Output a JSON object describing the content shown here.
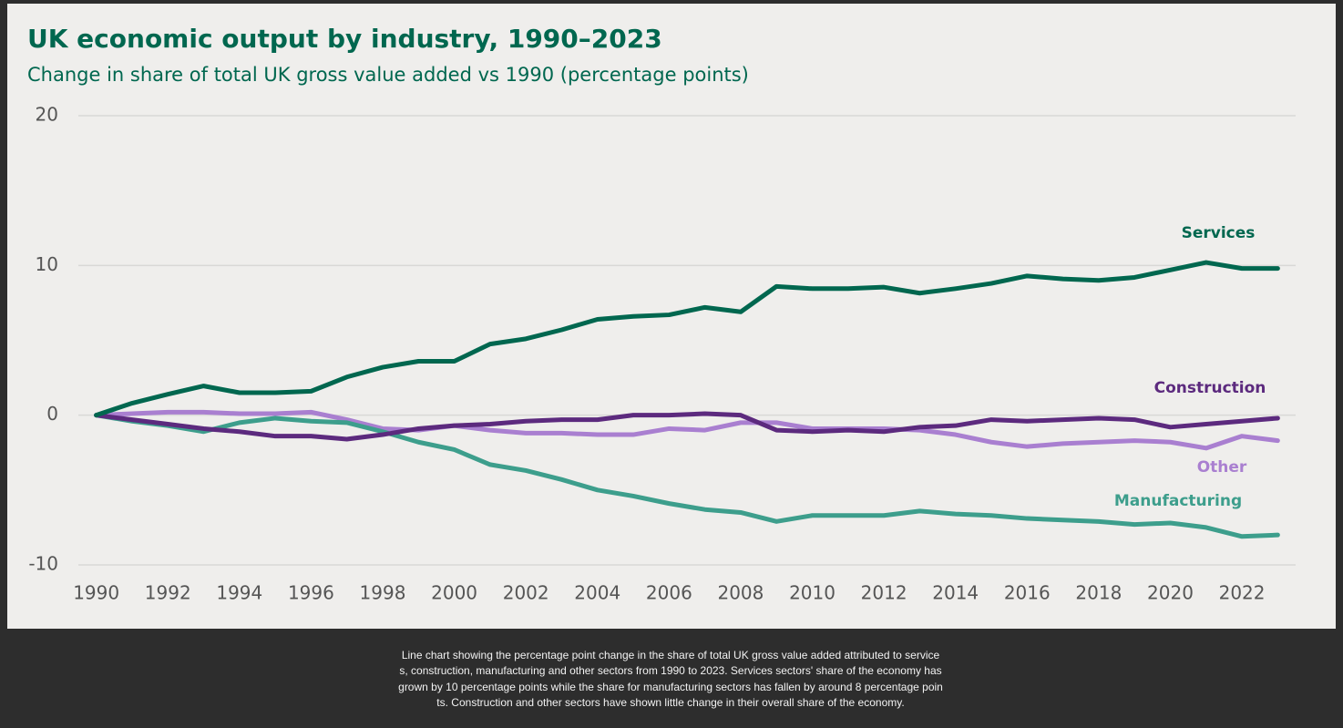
{
  "chart_data": {
    "type": "line",
    "title": "UK economic output by industry, 1990–2023",
    "subtitle": "Change in share of total UK gross value added vs 1990 (percentage points)",
    "x": [
      1990,
      1991,
      1992,
      1993,
      1994,
      1995,
      1996,
      1997,
      1998,
      1999,
      2000,
      2001,
      2002,
      2003,
      2004,
      2005,
      2006,
      2007,
      2008,
      2009,
      2010,
      2011,
      2012,
      2013,
      2014,
      2015,
      2016,
      2017,
      2018,
      2019,
      2020,
      2021,
      2022,
      2023
    ],
    "series": [
      {
        "name": "Services",
        "color": "#00674f",
        "values": [
          0,
          0.8,
          1.4,
          1.95,
          1.5,
          1.5,
          1.6,
          2.55,
          3.2,
          3.6,
          3.6,
          4.75,
          5.1,
          5.7,
          6.4,
          6.6,
          6.7,
          7.2,
          6.9,
          8.6,
          8.45,
          8.45,
          8.55,
          8.15,
          8.45,
          8.8,
          9.3,
          9.1,
          9.0,
          9.2,
          9.7,
          10.2,
          9.8,
          9.8
        ]
      },
      {
        "name": "Construction",
        "color": "#5c2a7e",
        "values": [
          0,
          -0.3,
          -0.6,
          -0.9,
          -1.1,
          -1.4,
          -1.4,
          -1.6,
          -1.3,
          -0.9,
          -0.7,
          -0.6,
          -0.4,
          -0.3,
          -0.3,
          0,
          0,
          0.1,
          0,
          -1.0,
          -1.1,
          -1.0,
          -1.1,
          -0.8,
          -0.7,
          -0.3,
          -0.4,
          -0.3,
          -0.2,
          -0.3,
          -0.8,
          -0.6,
          -0.4,
          -0.2
        ]
      },
      {
        "name": "Other",
        "color": "#a97fd0",
        "values": [
          0,
          0.1,
          0.2,
          0.2,
          0.1,
          0.1,
          0.2,
          -0.3,
          -0.9,
          -1.0,
          -0.7,
          -1.0,
          -1.2,
          -1.2,
          -1.3,
          -1.3,
          -0.9,
          -1.0,
          -0.5,
          -0.5,
          -0.9,
          -0.9,
          -0.9,
          -1.0,
          -1.3,
          -1.8,
          -2.1,
          -1.9,
          -1.8,
          -1.7,
          -1.8,
          -2.2,
          -1.4,
          -1.7
        ]
      },
      {
        "name": "Manufacturing",
        "color": "#3d9e8c",
        "values": [
          0,
          -0.4,
          -0.7,
          -1.1,
          -0.5,
          -0.2,
          -0.4,
          -0.5,
          -1.1,
          -1.8,
          -2.3,
          -3.3,
          -3.7,
          -4.3,
          -5.0,
          -5.4,
          -5.9,
          -6.3,
          -6.5,
          -7.1,
          -6.7,
          -6.7,
          -6.7,
          -6.4,
          -6.6,
          -6.7,
          -6.9,
          -7.0,
          -7.1,
          -7.3,
          -7.2,
          -7.5,
          -8.1,
          -8.0
        ]
      }
    ],
    "xlim": [
      1989.5,
      2023.5
    ],
    "xticks": [
      1990,
      1992,
      1994,
      1996,
      1998,
      2000,
      2002,
      2004,
      2006,
      2008,
      2010,
      2012,
      2014,
      2016,
      2018,
      2020,
      2022
    ],
    "ylim": [
      -10,
      20
    ],
    "yticks": [
      -10,
      0,
      10,
      20
    ],
    "grid": true
  },
  "caption": "Line chart showing the percentage point change in the share of total UK gross value added attributed to services, construction, manufacturing and other sectors from 1990 to 2023. Services sectors' share of the economy has grown by 10 percentage points while the share for manufacturing sectors has fallen by around 8 percentage points. Construction and other sectors have shown little change in their overall share of the economy."
}
